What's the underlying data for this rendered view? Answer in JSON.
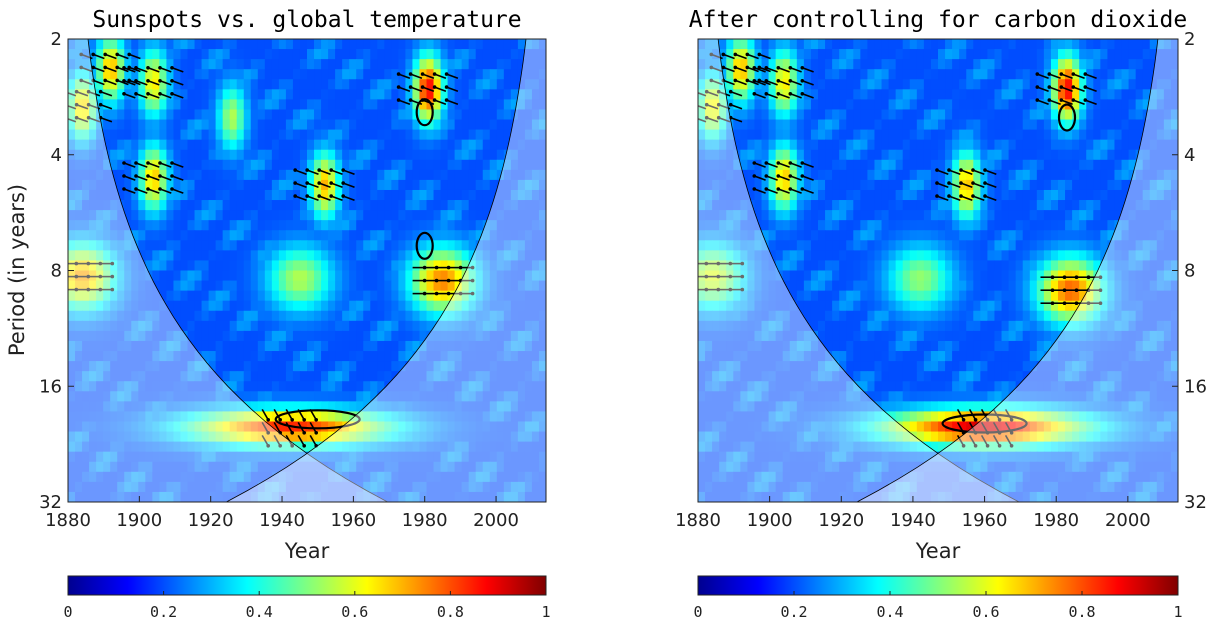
{
  "colormap": [
    "#00008f",
    "#0000ff",
    "#0080ff",
    "#00ffff",
    "#80ff80",
    "#ffff00",
    "#ff8000",
    "#ff0000",
    "#800000"
  ],
  "chart_data": [
    {
      "type": "heatmap",
      "subtype": "wavelet coherence",
      "title": "Sunspots vs. global temperature",
      "xlabel": "Year",
      "ylabel": "Period (in years)",
      "xlim": [
        1880,
        2014
      ],
      "xticks": [
        1880,
        1900,
        1920,
        1940,
        1960,
        1980,
        2000
      ],
      "ylim": [
        2,
        32
      ],
      "yscale": "log2",
      "yticks": [
        2,
        4,
        8,
        16,
        32
      ],
      "ytick_side": "left",
      "colorbar": {
        "range": [
          0,
          1
        ],
        "ticks": [
          "0",
          "0.2",
          "0.4",
          "0.6",
          "0.8",
          "1"
        ]
      },
      "cone_of_influence": true,
      "features": [
        {
          "year": 1892,
          "period": 2.4,
          "value": 0.7
        },
        {
          "year": 1904,
          "period": 2.6,
          "value": 0.65
        },
        {
          "year": 1904,
          "period": 4.6,
          "value": 0.68
        },
        {
          "year": 1926,
          "period": 3.2,
          "value": 0.55
        },
        {
          "year": 1952,
          "period": 4.8,
          "value": 0.7
        },
        {
          "year": 1981,
          "period": 2.7,
          "value": 0.88
        },
        {
          "year": 1985,
          "period": 8.5,
          "value": 0.75
        },
        {
          "year": 1945,
          "period": 8.4,
          "value": 0.55
        },
        {
          "year": 1942,
          "period": 20.5,
          "value": 0.84
        },
        {
          "year": 1884,
          "period": 8.3,
          "value": 0.72
        },
        {
          "year": 1884,
          "period": 3,
          "value": 0.68
        }
      ],
      "significant_regions": [
        {
          "year": 1980,
          "period": 3.1
        },
        {
          "year": 1980,
          "period": 6.9
        },
        {
          "year": 1950,
          "period": 19.5
        }
      ]
    },
    {
      "type": "heatmap",
      "subtype": "partial wavelet coherence",
      "title": "After controlling for carbon dioxide",
      "xlabel": "Year",
      "ylabel": "",
      "xlim": [
        1880,
        2014
      ],
      "xticks": [
        1880,
        1900,
        1920,
        1940,
        1960,
        1980,
        2000
      ],
      "ylim": [
        2,
        32
      ],
      "yscale": "log2",
      "yticks": [
        2,
        4,
        8,
        16,
        32
      ],
      "ytick_side": "right",
      "colorbar": {
        "range": [
          0,
          1
        ],
        "ticks": [
          "0",
          "0.2",
          "0.4",
          "0.6",
          "0.8",
          "1"
        ]
      },
      "cone_of_influence": true,
      "features": [
        {
          "year": 1892,
          "period": 2.4,
          "value": 0.7
        },
        {
          "year": 1904,
          "period": 2.6,
          "value": 0.65
        },
        {
          "year": 1904,
          "period": 4.6,
          "value": 0.68
        },
        {
          "year": 1955,
          "period": 4.8,
          "value": 0.7
        },
        {
          "year": 1983,
          "period": 2.7,
          "value": 0.88
        },
        {
          "year": 1984,
          "period": 9,
          "value": 0.78
        },
        {
          "year": 1942,
          "period": 8.4,
          "value": 0.52
        },
        {
          "year": 1960,
          "period": 20.5,
          "value": 0.92
        },
        {
          "year": 1884,
          "period": 3,
          "value": 0.65
        },
        {
          "year": 1884,
          "period": 8.3,
          "value": 0.6
        }
      ],
      "significant_regions": [
        {
          "year": 1983,
          "period": 3.2
        },
        {
          "year": 1960,
          "period": 20
        }
      ]
    }
  ]
}
